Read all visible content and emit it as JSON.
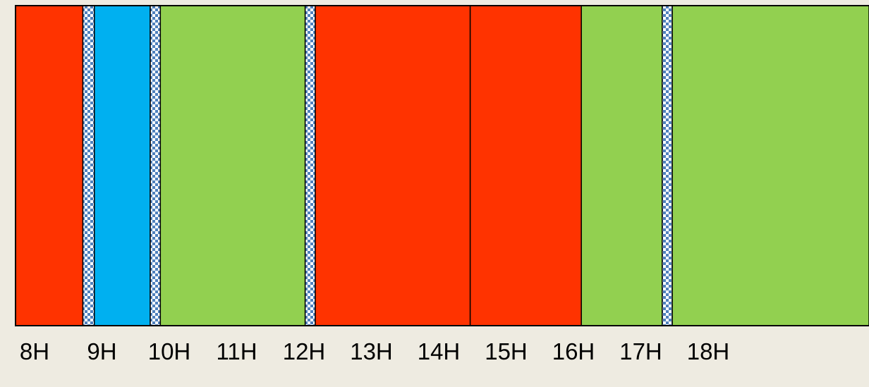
{
  "chart_data": {
    "type": "bar",
    "orientation": "horizontal-timeline",
    "title": "",
    "xlabel": "",
    "ylabel": "",
    "x_ticks": [
      "8H",
      "9H",
      "10H",
      "11H",
      "12H",
      "13H",
      "14H",
      "15H",
      "16H",
      "17H",
      "18H"
    ],
    "xlim": [
      8,
      18
    ],
    "segments": [
      {
        "start": 8.0,
        "end": 9.0,
        "category": "red"
      },
      {
        "start": 9.0,
        "end": 9.17,
        "category": "transition"
      },
      {
        "start": 9.17,
        "end": 10.0,
        "category": "blue"
      },
      {
        "start": 10.0,
        "end": 10.15,
        "category": "transition"
      },
      {
        "start": 10.15,
        "end": 12.3,
        "category": "green"
      },
      {
        "start": 12.3,
        "end": 12.45,
        "category": "transition"
      },
      {
        "start": 12.45,
        "end": 14.75,
        "category": "red"
      },
      {
        "start": 14.75,
        "end": 16.4,
        "category": "red"
      },
      {
        "start": 16.4,
        "end": 17.6,
        "category": "green"
      },
      {
        "start": 17.6,
        "end": 17.75,
        "category": "transition"
      },
      {
        "start": 17.75,
        "end": 21.0,
        "category": "green"
      }
    ],
    "colors": {
      "red": "#ff3300",
      "blue": "#00b0f0",
      "green": "#92d050",
      "transition": "#4f81bd",
      "background": "#eeebe1",
      "outline": "#000000"
    },
    "grid": false,
    "legend": "none"
  }
}
